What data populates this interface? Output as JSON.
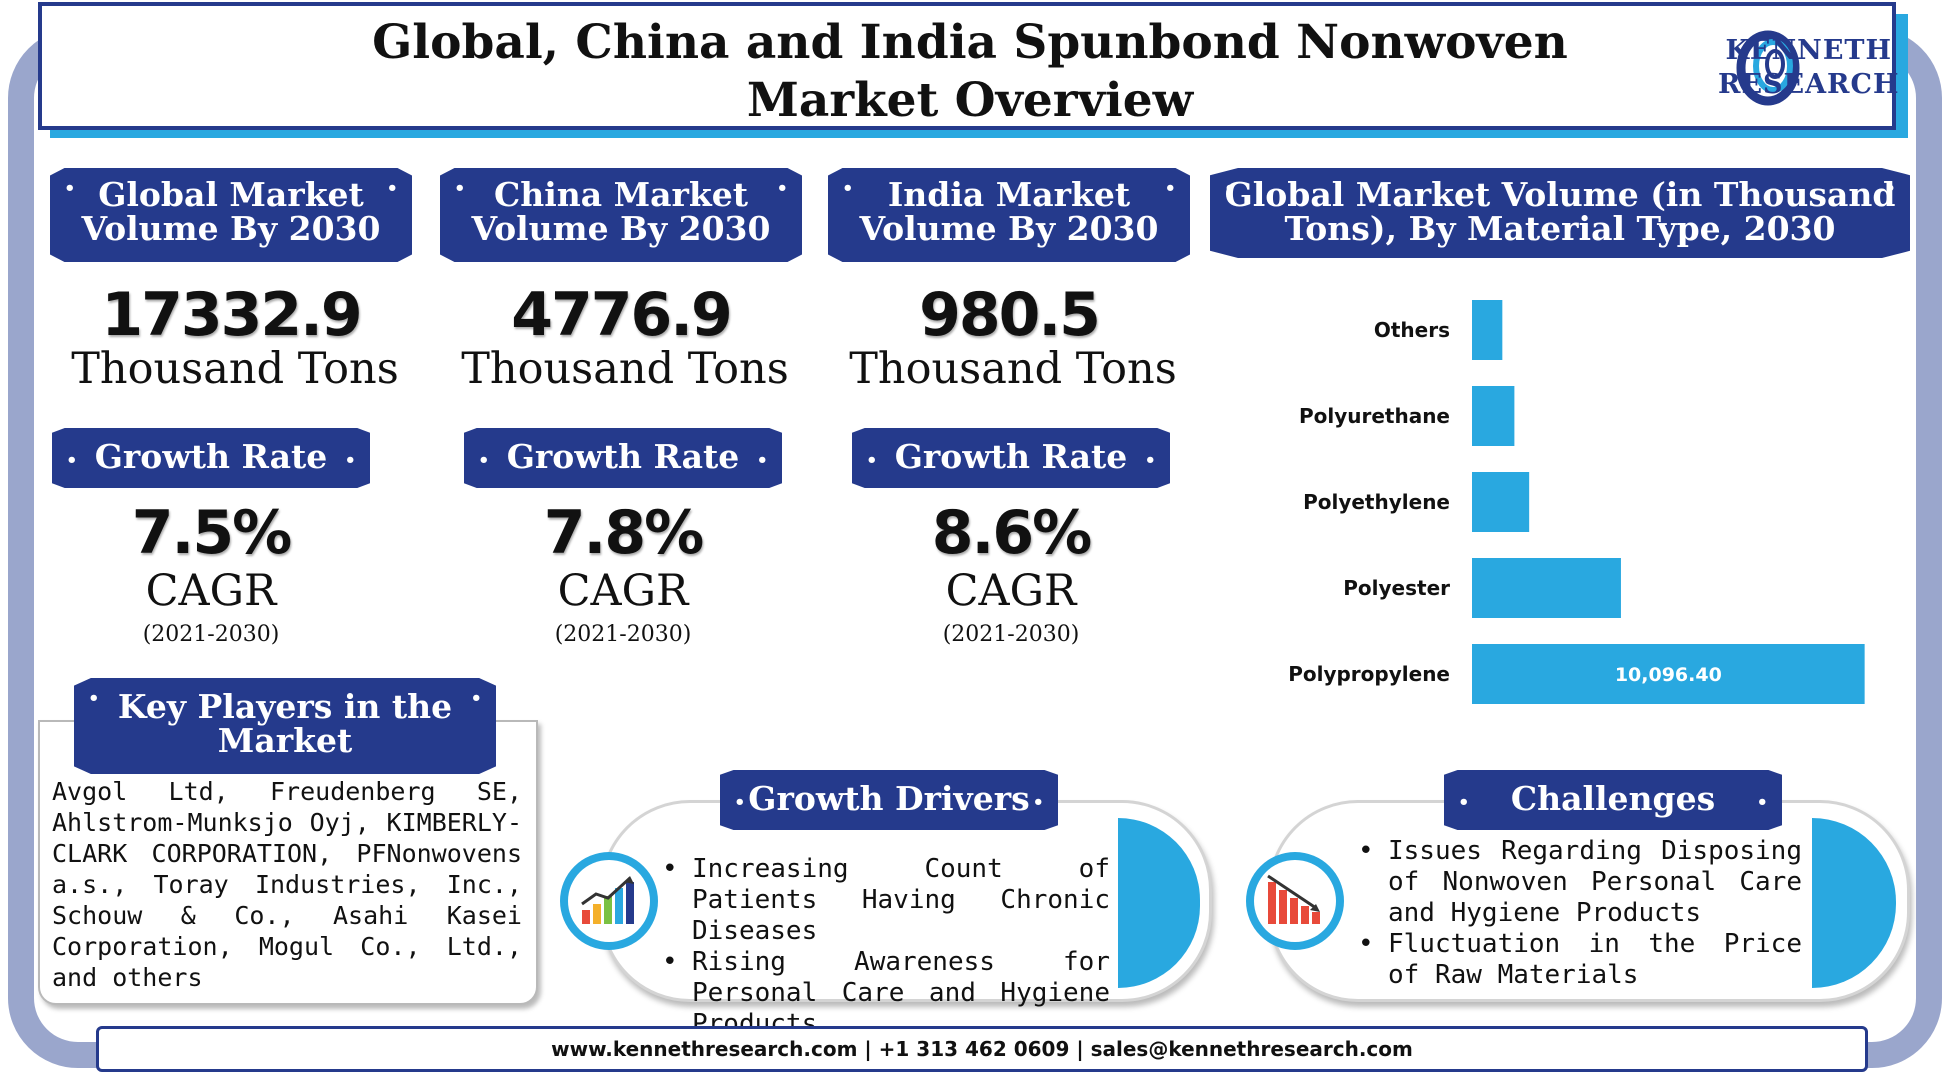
{
  "title": "Global, China and India Spunbond Nonwoven Market Overview",
  "logo": {
    "line1": "KENNETH",
    "line2": "RESEARCH",
    "icon": "kenneth-research-logo-icon"
  },
  "markets": [
    {
      "heading": "Global Market Volume By 2030",
      "volume": "17332.9",
      "unit": "Thousand Tons",
      "growth_heading": "Growth Rate",
      "cagr_value": "7.5%",
      "cagr_label": "CAGR",
      "period": "(2021-2030)"
    },
    {
      "heading": "China Market Volume By 2030",
      "volume": "4776.9",
      "unit": "Thousand Tons",
      "growth_heading": "Growth Rate",
      "cagr_value": "7.8%",
      "cagr_label": "CAGR",
      "period": "(2021-2030)"
    },
    {
      "heading": "India Market Volume By 2030",
      "volume": "980.5",
      "unit": "Thousand Tons",
      "growth_heading": "Growth Rate",
      "cagr_value": "8.6%",
      "cagr_label": "CAGR",
      "period": "(2021-2030)"
    }
  ],
  "key_players": {
    "heading": "Key Players in the Market",
    "text": "Avgol Ltd, Freudenberg SE, Ahlstrom-Munksjo Oyj, KIMBERLY-CLARK CORPORATION, PFNonwovens a.s., Toray Industries, Inc., Schouw & Co., Asahi Kasei Corporation, Mogul Co., Ltd., and others"
  },
  "growth_drivers": {
    "heading": "Growth Drivers",
    "icon": "rising-bar-chart-icon",
    "items": [
      "Increasing Count of Patients Having Chronic Diseases",
      "Rising Awareness for Personal Care and Hygiene Products"
    ]
  },
  "challenges": {
    "heading": "Challenges",
    "icon": "falling-bar-chart-icon",
    "items": [
      "Issues Regarding Disposing of Nonwoven Personal Care and Hygiene Products",
      "Fluctuation in the Price of Raw Materials"
    ]
  },
  "footer": "www.kennethresearch.com | +1 313 462 0609 | sales@kennethresearch.com",
  "chart_data": {
    "type": "bar",
    "orientation": "horizontal",
    "title": "Global Market Volume (in Thousand Tons), By Material Type, 2030",
    "categories": [
      "Others",
      "Polyurethane",
      "Polyethylene",
      "Polyester",
      "Polypropylene"
    ],
    "values": [
      780,
      1090,
      1470,
      3830,
      10096.4
    ],
    "data_labels": [
      "",
      "",
      "",
      "",
      "10,096.40"
    ],
    "xlim": [
      0,
      10800
    ],
    "grid": false,
    "legend": "none",
    "bar_color": "#29a8e0"
  }
}
